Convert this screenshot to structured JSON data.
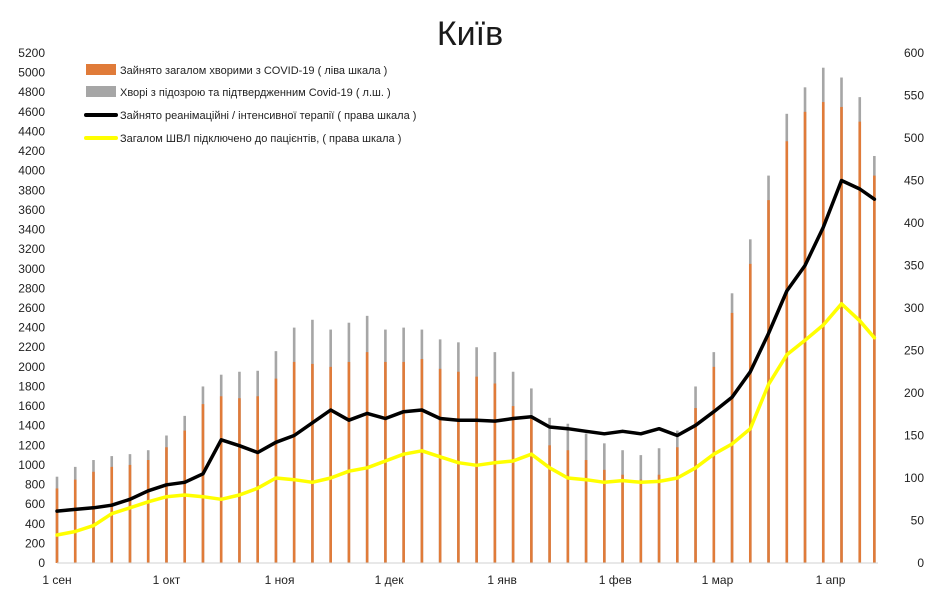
{
  "chart_data": {
    "type": "bar",
    "title": "Київ",
    "legend_placement": "top-left",
    "grid": false,
    "colors": {
      "total_covid": "#e07b39",
      "suspected_confirmed": "#a6a6a6",
      "icu": "#000000",
      "ventilator": "#ffff00"
    },
    "left_axis": {
      "ylim": [
        0,
        5200
      ],
      "step": 200,
      "ticks": [
        "0",
        "200",
        "400",
        "600",
        "800",
        "1000",
        "1200",
        "1400",
        "1600",
        "1800",
        "2000",
        "2200",
        "2400",
        "2600",
        "2800",
        "3000",
        "3200",
        "3400",
        "3600",
        "3800",
        "4000",
        "4200",
        "4400",
        "4600",
        "4800",
        "5000",
        "5200"
      ]
    },
    "right_axis": {
      "ylim": [
        0,
        600
      ],
      "step": 50,
      "ticks": [
        "0",
        "50",
        "100",
        "150",
        "200",
        "250",
        "300",
        "350",
        "400",
        "450",
        "500",
        "550",
        "600"
      ]
    },
    "x_ticks": [
      {
        "label": "1 сен",
        "day": 0
      },
      {
        "label": "1 окт",
        "day": 30
      },
      {
        "label": "1 ноя",
        "day": 61
      },
      {
        "label": "1 дек",
        "day": 91
      },
      {
        "label": "1 янв",
        "day": 122
      },
      {
        "label": "1 фев",
        "day": 153
      },
      {
        "label": "1 мар",
        "day": 181
      },
      {
        "label": "1 апр",
        "day": 212
      }
    ],
    "x_range_days": [
      0,
      225
    ],
    "series": [
      {
        "name": "Зайнято загалом хворими з COVID-19 ( ліва шкала )",
        "kind": "bar",
        "axis": "left",
        "days": [
          0,
          5,
          10,
          15,
          20,
          25,
          30,
          35,
          40,
          45,
          50,
          55,
          60,
          65,
          70,
          75,
          80,
          85,
          90,
          95,
          100,
          105,
          110,
          115,
          120,
          125,
          130,
          135,
          140,
          145,
          150,
          155,
          160,
          165,
          170,
          175,
          180,
          185,
          190,
          195,
          200,
          205,
          210,
          215,
          220,
          224
        ],
        "values": [
          760,
          850,
          930,
          980,
          1000,
          1050,
          1180,
          1350,
          1620,
          1700,
          1680,
          1700,
          1880,
          2050,
          2030,
          2000,
          2050,
          2150,
          2050,
          2050,
          2080,
          1980,
          1950,
          1900,
          1830,
          1600,
          1480,
          1200,
          1150,
          1050,
          950,
          900,
          850,
          900,
          1180,
          1580,
          2000,
          2550,
          3050,
          3700,
          4300,
          4600,
          4700,
          4650,
          4500,
          3950
        ]
      },
      {
        "name": "Хворі з підозрою та підтвердженним Covid-19 ( л.ш. )",
        "kind": "bar",
        "axis": "left",
        "days": [
          0,
          5,
          10,
          15,
          20,
          25,
          30,
          35,
          40,
          45,
          50,
          55,
          60,
          65,
          70,
          75,
          80,
          85,
          90,
          95,
          100,
          105,
          110,
          115,
          120,
          125,
          130,
          135,
          140,
          145,
          150,
          155,
          160,
          165,
          170,
          175,
          180,
          185,
          190,
          195,
          200,
          205,
          210,
          215,
          220,
          224
        ],
        "values": [
          880,
          980,
          1050,
          1090,
          1110,
          1150,
          1300,
          1500,
          1800,
          1920,
          1950,
          1960,
          2160,
          2400,
          2480,
          2380,
          2450,
          2520,
          2380,
          2400,
          2380,
          2280,
          2250,
          2200,
          2150,
          1950,
          1780,
          1480,
          1420,
          1320,
          1220,
          1150,
          1100,
          1170,
          1350,
          1800,
          2150,
          2750,
          3300,
          3950,
          4580,
          4850,
          5050,
          4950,
          4750,
          4150
        ]
      },
      {
        "name": "Зайнято реанімаційні / інтенсивної терапії ( права шкала )",
        "kind": "line",
        "axis": "right",
        "days": [
          0,
          5,
          10,
          15,
          20,
          25,
          30,
          35,
          40,
          45,
          50,
          55,
          60,
          65,
          70,
          75,
          80,
          85,
          90,
          95,
          100,
          105,
          110,
          115,
          120,
          125,
          130,
          135,
          140,
          145,
          150,
          155,
          160,
          165,
          170,
          175,
          180,
          185,
          190,
          195,
          200,
          205,
          210,
          215,
          220,
          224
        ],
        "values": [
          61,
          63,
          65,
          68,
          75,
          85,
          92,
          95,
          105,
          145,
          138,
          130,
          142,
          150,
          165,
          180,
          168,
          176,
          170,
          178,
          180,
          170,
          168,
          168,
          167,
          170,
          172,
          160,
          158,
          155,
          152,
          155,
          152,
          158,
          150,
          162,
          178,
          195,
          225,
          270,
          320,
          350,
          395,
          450,
          440,
          428
        ]
      },
      {
        "name": "Загалом ШВЛ  підключено до пацієнтів, ( права шкала )",
        "kind": "line",
        "axis": "right",
        "days": [
          0,
          5,
          10,
          15,
          20,
          25,
          30,
          35,
          40,
          45,
          50,
          55,
          60,
          65,
          70,
          75,
          80,
          85,
          90,
          95,
          100,
          105,
          110,
          115,
          120,
          125,
          130,
          135,
          140,
          145,
          150,
          155,
          160,
          165,
          170,
          175,
          180,
          185,
          190,
          195,
          200,
          205,
          210,
          215,
          220,
          224
        ],
        "values": [
          33,
          37,
          44,
          58,
          65,
          72,
          78,
          80,
          78,
          75,
          80,
          88,
          100,
          98,
          95,
          100,
          108,
          112,
          120,
          128,
          132,
          125,
          118,
          115,
          118,
          120,
          128,
          112,
          100,
          98,
          95,
          97,
          95,
          96,
          100,
          112,
          128,
          140,
          158,
          210,
          245,
          262,
          280,
          305,
          285,
          265
        ]
      }
    ]
  }
}
